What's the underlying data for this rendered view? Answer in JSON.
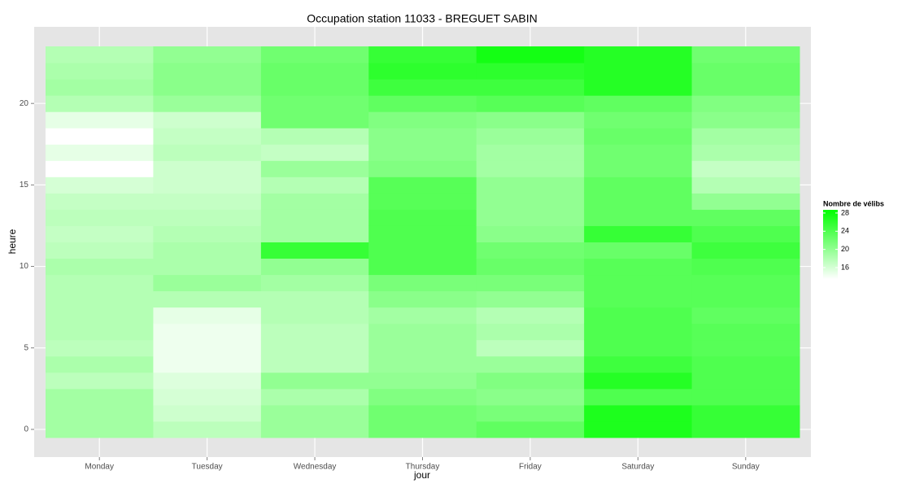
{
  "chart_data": {
    "type": "heatmap",
    "title": "Occupation station 11033 - BREGUET SABIN",
    "x_label": "jour",
    "y_label": "heure",
    "categories": [
      "Monday",
      "Tuesday",
      "Wednesday",
      "Thursday",
      "Friday",
      "Saturday",
      "Sunday"
    ],
    "y": [
      0,
      1,
      2,
      3,
      4,
      5,
      6,
      7,
      8,
      9,
      10,
      11,
      12,
      13,
      14,
      15,
      16,
      17,
      18,
      19,
      20,
      21,
      22,
      23
    ],
    "values": [
      [
        19,
        19,
        19,
        17.5,
        18.5,
        17.5,
        18,
        18,
        18,
        18,
        18.5,
        17.5,
        17,
        17.5,
        17,
        16,
        13.5,
        15,
        13.5,
        15,
        18,
        19,
        18.5,
        18
      ],
      [
        17.5,
        16.5,
        16,
        15.5,
        14.5,
        14.5,
        14.5,
        15,
        18,
        19.5,
        18.5,
        18.5,
        18,
        17.5,
        17,
        16.5,
        16.5,
        17.5,
        17,
        16.5,
        19.5,
        20.5,
        20.5,
        20
      ],
      [
        19.5,
        19.5,
        18.5,
        20,
        17.5,
        17.5,
        17.5,
        18,
        18,
        19,
        20,
        25.5,
        19,
        19,
        19,
        18,
        19.5,
        17,
        18,
        22,
        22,
        22.5,
        22.5,
        22
      ],
      [
        22,
        22,
        21,
        20,
        19.5,
        19.5,
        19.5,
        19,
        20.5,
        21.5,
        24,
        24,
        24,
        24,
        23.5,
        23.5,
        21,
        20.5,
        20.5,
        21,
        23,
        25,
        26,
        25.5
      ],
      [
        23,
        21.5,
        20.5,
        21,
        19.5,
        17.5,
        18.5,
        18,
        20,
        21.5,
        22.5,
        22,
        20.5,
        20,
        20,
        20,
        19,
        19,
        19.5,
        20.5,
        23.5,
        25,
        26,
        27.5
      ],
      [
        27,
        27,
        24,
        26.5,
        25,
        24,
        24,
        24,
        23.5,
        23.5,
        23.5,
        22.5,
        25.5,
        23,
        23,
        23,
        22,
        22,
        22.5,
        22,
        23,
        26.5,
        26.5,
        26.5
      ],
      [
        25.5,
        25.5,
        24,
        24,
        24,
        23.5,
        23.5,
        23,
        23.5,
        23.5,
        24,
        25,
        24,
        23,
        20,
        18,
        17,
        18.5,
        19,
        20.5,
        21,
        22.5,
        22.5,
        22
      ]
    ],
    "ylim": [
      -1.7,
      24.7
    ],
    "yticks": [
      0,
      5,
      10,
      15,
      20
    ],
    "grid": true,
    "color_scale": {
      "title": "Nombre de vélibs",
      "lim": [
        13.5,
        28.7
      ],
      "ticks": [
        16,
        20,
        24,
        28
      ],
      "low": "#ffffff",
      "high": "#00ff00"
    }
  }
}
